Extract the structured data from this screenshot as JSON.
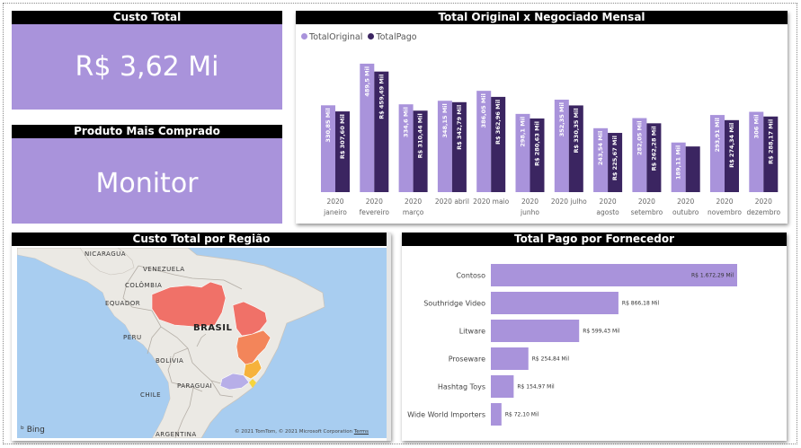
{
  "kpi_total": {
    "title": "Custo Total",
    "value": "R$ 3,62 Mi"
  },
  "kpi_product": {
    "title": "Produto Mais Comprado",
    "value": "Monitor"
  },
  "monthly": {
    "title": "Total Original x Negociado Mensal",
    "legend": [
      "TotalOriginal",
      "TotalPago"
    ]
  },
  "region": {
    "title": "Custo Total por Região",
    "bing": "Bing",
    "attribution": "© 2021 TomTom, © 2021 Microsoft Corporation",
    "terms": "Terms",
    "labels": {
      "nicaragua": "NICARAGUA",
      "venezuela": "VENEZUELA",
      "colombia": "COLÔMBIA",
      "equador": "EQUADOR",
      "brasil": "BRASIL",
      "peru": "PERU",
      "bolivia": "BOLÍVIA",
      "paraguai": "PARAGUAI",
      "chile": "CHILE",
      "argentina": "ARGENTINA"
    }
  },
  "supplier": {
    "title": "Total Pago por Fornecedor"
  },
  "colors": {
    "original": "#a993db",
    "pago": "#3b2561",
    "kpi_bg": "#a993db",
    "header_bg": "#000000",
    "region_north": "#f07168",
    "region_northeast": "#f3855a",
    "region_southeast": "#f6b23c",
    "region_south": "#b7aee8"
  },
  "chart_data": [
    {
      "type": "bar",
      "title": "Total Original x Negociado Mensal",
      "categories": [
        [
          "2020",
          "janeiro"
        ],
        [
          "2020",
          "fevereiro"
        ],
        [
          "2020",
          "março"
        ],
        [
          "2020 abril"
        ],
        [
          "2020 maio"
        ],
        [
          "2020",
          "junho"
        ],
        [
          "2020 julho"
        ],
        [
          "2020",
          "agosto"
        ],
        [
          "2020",
          "setembro"
        ],
        [
          "2020",
          "outubro"
        ],
        [
          "2020",
          "novembro"
        ],
        [
          "2020",
          "dezembro"
        ]
      ],
      "series": [
        {
          "name": "TotalOriginal",
          "values": [
            330.85,
            489.5,
            334.6,
            348.15,
            386.05,
            298.1,
            352.35,
            243.54,
            282.05,
            189.11,
            293.91,
            306
          ],
          "labels": [
            "330,85 Mil",
            "489,5 Mil",
            "334,6 Mil",
            "348,15 Mil",
            "386,05 Mil",
            "298,1 Mil",
            "352,35 Mil",
            "243,54 Mil",
            "282,05 Mil",
            "189,11 Mil",
            "293,91 Mil",
            "306 Mil"
          ]
        },
        {
          "name": "TotalPago",
          "values": [
            307.6,
            459.49,
            310.44,
            342.79,
            362.96,
            280.63,
            330.35,
            225.67,
            262.28,
            174,
            274.34,
            288.17
          ],
          "labels": [
            "R$ 307,60 Mil",
            "R$ 459,49 Mil",
            "R$ 310,44 Mil",
            "R$ 342,79 Mil",
            "R$ 362,96 Mil",
            "R$ 280,63 Mil",
            "R$ 330,35 Mil",
            "R$ 225,67 Mil",
            "R$ 262,28 Mil",
            "",
            "R$ 274,34 Mil",
            "R$ 288,17 Mil"
          ]
        }
      ],
      "ylim": [
        0,
        520
      ]
    },
    {
      "type": "bar",
      "orientation": "horizontal",
      "title": "Total Pago por Fornecedor",
      "categories": [
        "Contoso",
        "Southridge Video",
        "Litware",
        "Proseware",
        "Hashtag Toys",
        "Wide World Importers"
      ],
      "values": [
        1672.29,
        866.18,
        599.43,
        254.84,
        154.97,
        72.1
      ],
      "labels": [
        "R$ 1.672,29 Mil",
        "R$ 866,18 Mil",
        "R$ 599,43 Mil",
        "R$ 254,84 Mil",
        "R$ 154,97 Mil",
        "R$ 72,10 Mil"
      ],
      "xlim": [
        0,
        1700
      ]
    }
  ]
}
